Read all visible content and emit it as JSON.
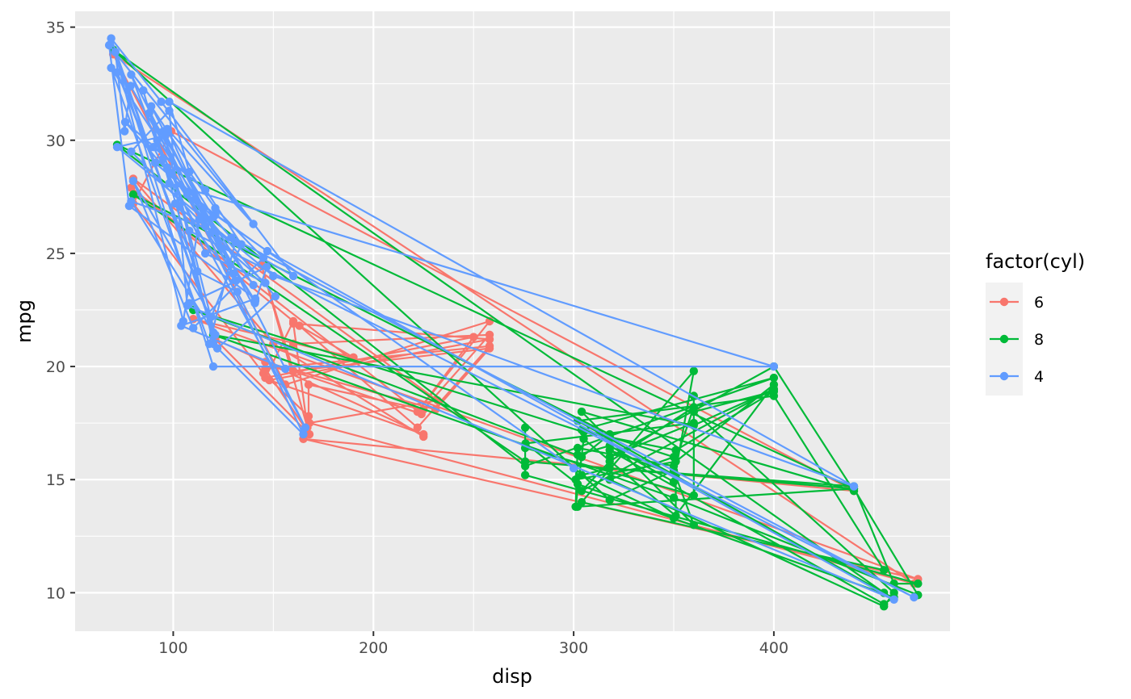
{
  "chart_data": {
    "type": "line",
    "title": "",
    "xlabel": "disp",
    "ylabel": "mpg",
    "xlim": [
      51,
      488
    ],
    "ylim": [
      8.3,
      35.7
    ],
    "x_ticks": [
      100,
      200,
      300,
      400
    ],
    "y_ticks": [
      10,
      15,
      20,
      25,
      30,
      35
    ],
    "grid": true,
    "markers": true,
    "legend": {
      "title": "factor(cyl)",
      "position": "right"
    },
    "colors": {
      "6": "#F8766D",
      "8": "#00BA38",
      "4": "#619CFF",
      "panel": "#EBEBEB",
      "grid": "#FFFFFF"
    },
    "series": [
      {
        "name": "6",
        "points": [
          [
            160,
            21.0
          ],
          [
            160,
            21.0
          ],
          [
            258,
            21.4
          ],
          [
            225,
            18.1
          ],
          [
            167.6,
            19.2
          ],
          [
            167.6,
            17.8
          ],
          [
            145,
            19.7
          ],
          [
            80,
            27.2
          ],
          [
            99,
            30.4
          ],
          [
            440,
            14.5
          ],
          [
            165,
            16.8
          ],
          [
            472,
            10.6
          ],
          [
            110,
            22.1
          ],
          [
            190,
            20.4
          ],
          [
            163,
            21.8
          ],
          [
            222,
            17.3
          ],
          [
            258,
            20.9
          ],
          [
            146,
            19.9
          ],
          [
            168,
            17.0
          ],
          [
            121,
            21.2
          ],
          [
            225,
            17.0
          ],
          [
            148,
            19.4
          ],
          [
            258,
            21.2
          ],
          [
            160,
            21.9
          ],
          [
            167,
            17.3
          ],
          [
            144,
            24.5
          ],
          [
            160,
            19.8
          ],
          [
            258,
            20.8
          ],
          [
            231,
            18.1
          ],
          [
            146,
            20.2
          ],
          [
            224,
            17.9
          ],
          [
            79,
            27.9
          ],
          [
            160,
            22.0
          ],
          [
            146,
            19.5
          ],
          [
            250,
            21.3
          ],
          [
            222,
            18.0
          ],
          [
            258,
            22.0
          ],
          [
            156,
            19.2
          ],
          [
            70,
            33.8
          ],
          [
            470,
            10.4
          ],
          [
            168,
            17.5
          ],
          [
            232,
            18.5
          ],
          [
            80,
            28.3
          ],
          [
            150,
            21.0
          ],
          [
            225,
            16.9
          ]
        ]
      },
      {
        "name": "8",
        "points": [
          [
            360,
            18.7
          ],
          [
            360,
            14.3
          ],
          [
            275.8,
            16.4
          ],
          [
            275.8,
            17.3
          ],
          [
            275.8,
            15.2
          ],
          [
            472,
            10.4
          ],
          [
            460,
            10.4
          ],
          [
            440,
            14.7
          ],
          [
            318,
            15.5
          ],
          [
            304,
            15.2
          ],
          [
            350,
            13.3
          ],
          [
            400,
            19.2
          ],
          [
            351,
            15.8
          ],
          [
            301,
            15.0
          ],
          [
            302,
            16.1
          ],
          [
            318,
            16.5
          ],
          [
            350,
            14.9
          ],
          [
            360,
            19.8
          ],
          [
            304,
            14.0
          ],
          [
            455,
            11.0
          ],
          [
            400,
            18.7
          ],
          [
            302,
            17.6
          ],
          [
            455,
            10.0
          ],
          [
            70,
            34.0
          ],
          [
            318,
            14.1
          ],
          [
            350,
            15.4
          ],
          [
            360,
            13.0
          ],
          [
            304,
            18.0
          ],
          [
            440,
            14.5
          ],
          [
            400,
            20.0
          ],
          [
            318,
            16.0
          ],
          [
            360,
            17.5
          ],
          [
            276,
            16.6
          ],
          [
            302,
            14.8
          ],
          [
            460,
            9.8
          ],
          [
            455,
            9.5
          ],
          [
            318,
            16.3
          ],
          [
            351,
            15.2
          ],
          [
            351,
            13.4
          ],
          [
            305,
            16.8
          ],
          [
            301,
            13.8
          ],
          [
            302,
            16.4
          ],
          [
            350,
            15.6
          ],
          [
            360,
            18.2
          ],
          [
            318,
            15.8
          ],
          [
            304,
            14.5
          ],
          [
            400,
            19.0
          ],
          [
            360,
            17.4
          ],
          [
            120,
            21.4
          ],
          [
            350,
            14.2
          ],
          [
            472,
            9.9
          ],
          [
            440,
            14.6
          ],
          [
            275.8,
            15.8
          ],
          [
            80,
            27.6
          ],
          [
            318,
            17.0
          ],
          [
            304,
            16.0
          ],
          [
            110,
            22.5
          ],
          [
            305,
            17.1
          ],
          [
            351,
            16.3
          ],
          [
            400,
            18.9
          ],
          [
            360,
            18.0
          ],
          [
            460,
            10.0
          ],
          [
            455,
            9.4
          ],
          [
            318,
            15.0
          ],
          [
            350,
            16.0
          ],
          [
            318,
            16.9
          ],
          [
            304,
            17.2
          ],
          [
            400,
            19.5
          ],
          [
            275.8,
            15.6
          ],
          [
            72,
            29.8
          ],
          [
            440,
            14.6
          ],
          [
            302,
            13.8
          ]
        ]
      },
      {
        "name": "4",
        "points": [
          [
            108,
            22.8
          ],
          [
            146.7,
            24.4
          ],
          [
            140.8,
            22.8
          ],
          [
            78.7,
            32.4
          ],
          [
            75.7,
            30.4
          ],
          [
            71.1,
            33.9
          ],
          [
            120.1,
            21.5
          ],
          [
            79,
            27.3
          ],
          [
            120.3,
            26.0
          ],
          [
            95.1,
            30.4
          ],
          [
            121,
            21.4
          ],
          [
            69,
            34.5
          ],
          [
            94,
            31.7
          ],
          [
            160,
            24.0
          ],
          [
            116,
            26.2
          ],
          [
            79,
            29.5
          ],
          [
            98,
            31.3
          ],
          [
            107,
            22.7
          ],
          [
            460,
            9.7
          ],
          [
            147,
            25.1
          ],
          [
            121,
            26.7
          ],
          [
            91,
            29.0
          ],
          [
            72,
            33.0
          ],
          [
            112,
            24.2
          ],
          [
            132,
            23.3
          ],
          [
            166,
            17.3
          ],
          [
            90,
            29.7
          ],
          [
            116,
            27.8
          ],
          [
            76,
            30.8
          ],
          [
            151,
            23.1
          ],
          [
            122,
            20.8
          ],
          [
            85,
            32.2
          ],
          [
            98,
            28.1
          ],
          [
            400,
            20.0
          ],
          [
            120,
            20.0
          ],
          [
            71,
            33.9
          ],
          [
            105,
            22.0
          ],
          [
            113,
            26.5
          ],
          [
            130,
            24.1
          ],
          [
            97,
            30.5
          ],
          [
            140,
            26.3
          ],
          [
            68,
            34.2
          ],
          [
            78,
            27.1
          ],
          [
            141,
            23.0
          ],
          [
            104,
            21.8
          ],
          [
            156,
            19.9
          ],
          [
            89,
            31.5
          ],
          [
            134,
            25.4
          ],
          [
            119,
            22.2
          ],
          [
            80,
            28.2
          ],
          [
            110,
            21.7
          ],
          [
            145,
            24.8
          ],
          [
            121,
            27.0
          ],
          [
            108,
            28.6
          ],
          [
            98,
            31.7
          ],
          [
            440,
            14.7
          ],
          [
            150,
            24.0
          ],
          [
            72,
            29.7
          ],
          [
            96,
            30.2
          ],
          [
            120,
            21.0
          ],
          [
            165,
            17.0
          ],
          [
            88,
            31.2
          ],
          [
            120,
            26.6
          ],
          [
            129,
            25.7
          ],
          [
            470,
            9.8
          ],
          [
            108,
            26.0
          ],
          [
            79,
            32.9
          ],
          [
            131,
            23.8
          ],
          [
            101,
            27.2
          ],
          [
            146,
            23.7
          ],
          [
            116,
            25.0
          ],
          [
            92,
            30.0
          ],
          [
            95,
            29.2
          ],
          [
            140,
            23.6
          ],
          [
            69,
            33.2
          ],
          [
            118,
            21.0
          ],
          [
            131,
            25.5
          ],
          [
            97,
            28.8
          ],
          [
            141,
            22.9
          ],
          [
            107,
            27.6
          ],
          [
            300,
            15.5
          ]
        ]
      }
    ]
  }
}
